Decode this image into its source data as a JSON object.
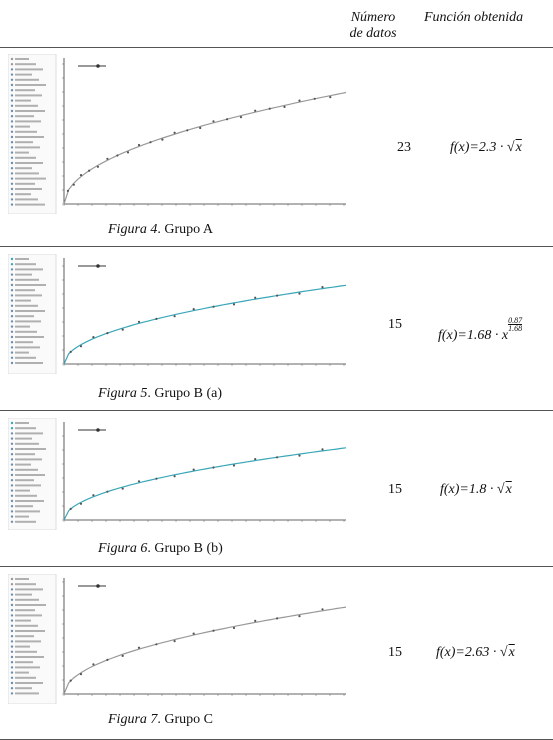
{
  "header": {
    "n_label_line1": "Número",
    "n_label_line2": "de datos",
    "f_label": "Función obtenida"
  },
  "rows": [
    {
      "caption_fig": "Figura 4",
      "caption_rest": ". Grupo A",
      "n": "23",
      "f_prefix": "f(x)=2.3 · ",
      "f_radical": "√",
      "f_var": "x"
    },
    {
      "caption_fig": "Figura 5",
      "caption_rest": ". Grupo B (a)",
      "n": "15",
      "f_prefix": "f(x)=1.68 · x",
      "exp_top": "0.87",
      "exp_bottom": "1.68"
    },
    {
      "caption_fig": "Figura 6",
      "caption_rest": ". Grupo B (b)",
      "n": "15",
      "f_prefix": "f(x)=1.8 · ",
      "f_radical": "√",
      "f_var": "x"
    },
    {
      "caption_fig": "Figura 7",
      "caption_rest": ". Grupo C",
      "n": "15",
      "f_prefix": "f(x)=2.63 · ",
      "f_radical": "√",
      "f_var": "x"
    }
  ],
  "colors": {
    "curve_gray": "#999999",
    "curve_teal": "#3aa7b8",
    "point": "#555555",
    "axis": "#333333"
  }
}
